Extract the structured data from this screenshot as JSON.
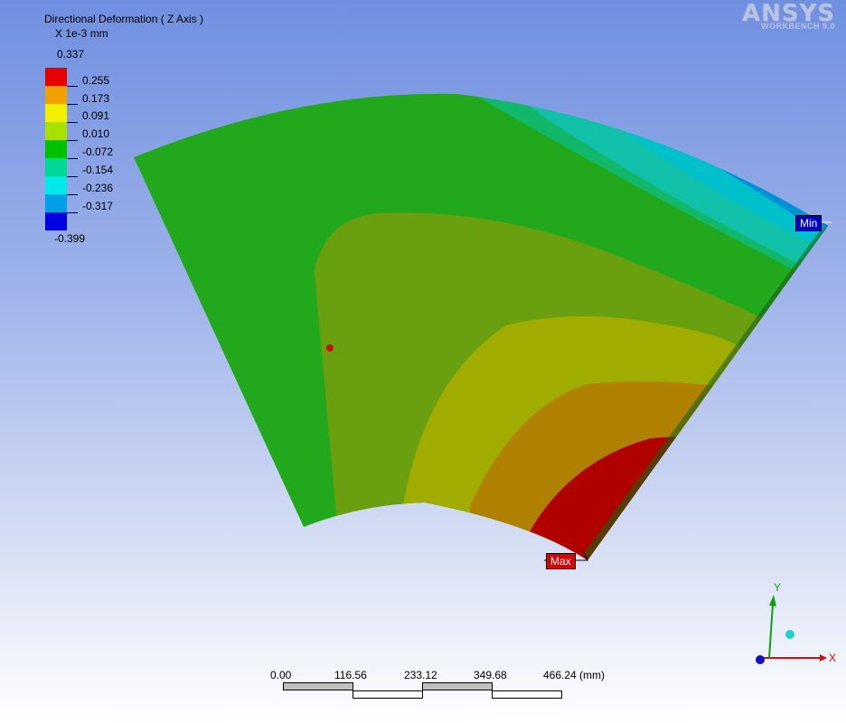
{
  "result": {
    "title": "Directional Deformation ( Z Axis )",
    "units": "X 1e-3 mm"
  },
  "legend": {
    "max": "0.337",
    "min": "-0.399",
    "levels": [
      {
        "label": "0.255",
        "color": "#e80000"
      },
      {
        "label": "0.173",
        "color": "#f0a000"
      },
      {
        "label": "0.091",
        "color": "#f0f000"
      },
      {
        "label": "0.010",
        "color": "#a0e000"
      },
      {
        "label": "-0.072",
        "color": "#00c000"
      },
      {
        "label": "-0.154",
        "color": "#00d89a"
      },
      {
        "label": "-0.236",
        "color": "#00e8e8"
      },
      {
        "label": "-0.317",
        "color": "#00a0e8"
      }
    ],
    "min_color": "#0000e8"
  },
  "logo": {
    "brand": "ANSYS",
    "product": "WORKBENCH 9.0"
  },
  "probes": {
    "max_label": "Max",
    "min_label": "Min"
  },
  "scale": {
    "ticks": [
      "0.00",
      "116.56",
      "233.12",
      "349.68",
      "466.24 (mm)"
    ]
  },
  "triad": {
    "x_label": "X",
    "y_label": "Y"
  }
}
